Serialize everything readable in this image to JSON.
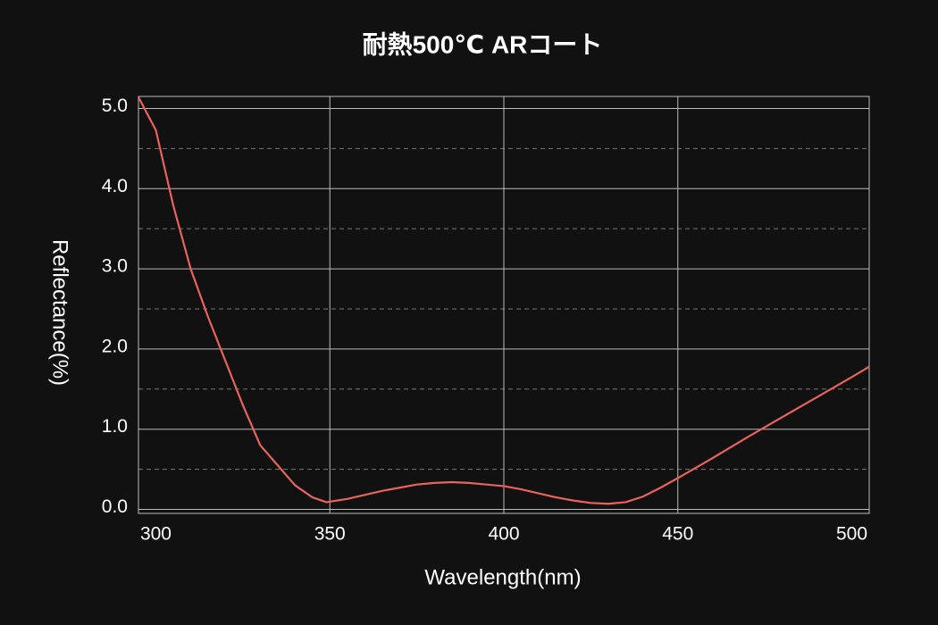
{
  "chart_data": {
    "type": "line",
    "title": "耐熱500℃ ARコート",
    "x_label": "Wavelength(nm)",
    "y_label": "Reflectance(%)",
    "x": [
      295,
      300,
      305,
      310,
      315,
      320,
      325,
      330,
      335,
      340,
      345,
      349,
      355,
      360,
      365,
      370,
      375,
      380,
      385,
      390,
      395,
      400,
      405,
      410,
      415,
      420,
      425,
      430,
      435,
      440,
      445,
      450,
      460,
      470,
      480,
      490,
      500,
      505
    ],
    "series": [
      {
        "color": "#e8635b",
        "values": [
          5.14,
          4.73,
          3.79,
          3.0,
          2.4,
          1.85,
          1.3,
          0.8,
          0.55,
          0.3,
          0.15,
          0.09,
          0.13,
          0.18,
          0.23,
          0.27,
          0.31,
          0.33,
          0.34,
          0.33,
          0.31,
          0.29,
          0.25,
          0.2,
          0.15,
          0.11,
          0.08,
          0.07,
          0.09,
          0.16,
          0.27,
          0.39,
          0.64,
          0.9,
          1.15,
          1.4,
          1.65,
          1.78
        ]
      }
    ],
    "xlim": [
      295,
      505
    ],
    "xticks": [
      300,
      350,
      400,
      450,
      500
    ],
    "xgrid": [
      350,
      400,
      450
    ],
    "ylim": [
      -0.05,
      5.15
    ],
    "yticks": [
      {
        "value": 0,
        "label": "0.0"
      },
      {
        "value": 1,
        "label": "1.0"
      },
      {
        "value": 2,
        "label": "2.0"
      },
      {
        "value": 3,
        "label": "3.0"
      },
      {
        "value": 4,
        "label": "4.0"
      },
      {
        "value": 5,
        "label": "5.0"
      }
    ],
    "minor_yticks": [
      0.5,
      1.5,
      2.5,
      3.5,
      4.5
    ],
    "grid": true
  }
}
